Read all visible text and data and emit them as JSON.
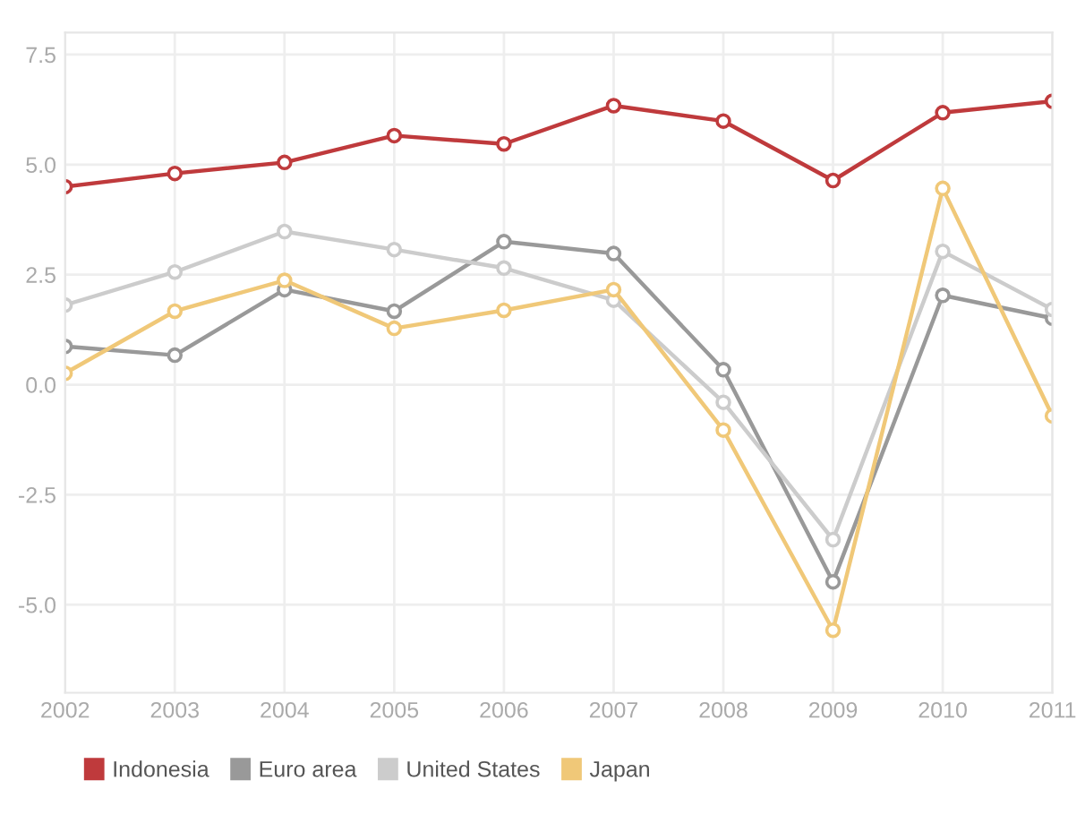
{
  "chart_data": {
    "type": "line",
    "x": [
      2002,
      2003,
      2004,
      2005,
      2006,
      2007,
      2008,
      2009,
      2010,
      2011
    ],
    "series": [
      {
        "name": "Indonesia",
        "color": "#bf3a3c",
        "values": [
          4.5,
          4.8,
          5.05,
          5.66,
          5.47,
          6.34,
          5.99,
          4.64,
          6.18,
          6.44
        ]
      },
      {
        "name": "Euro area",
        "color": "#999999",
        "values": [
          0.87,
          0.67,
          2.16,
          1.67,
          3.25,
          2.98,
          0.34,
          -4.48,
          2.03,
          1.51
        ]
      },
      {
        "name": "United States",
        "color": "#cccccc",
        "values": [
          1.81,
          2.56,
          3.48,
          3.07,
          2.65,
          1.92,
          -0.4,
          -3.52,
          3.03,
          1.71
        ]
      },
      {
        "name": "Japan",
        "color": "#f0c878",
        "values": [
          0.26,
          1.67,
          2.37,
          1.28,
          1.69,
          2.16,
          -1.03,
          -5.58,
          4.46,
          -0.71
        ]
      }
    ],
    "xlim": [
      2002,
      2011
    ],
    "xticks": [
      2002,
      2003,
      2004,
      2005,
      2006,
      2007,
      2008,
      2009,
      2010,
      2011
    ],
    "ylim": [
      -7,
      8
    ],
    "yticks": [
      {
        "value": -5,
        "label": "-5.0"
      },
      {
        "value": -2.5,
        "label": "-2.5"
      },
      {
        "value": 0,
        "label": "0.0"
      },
      {
        "value": 2.5,
        "label": "2.5"
      },
      {
        "value": 5,
        "label": "5.0"
      },
      {
        "value": 7.5,
        "label": "7.5"
      }
    ],
    "grid": true,
    "legend": "bottom left",
    "marker": "circle",
    "line_style": "solid"
  }
}
